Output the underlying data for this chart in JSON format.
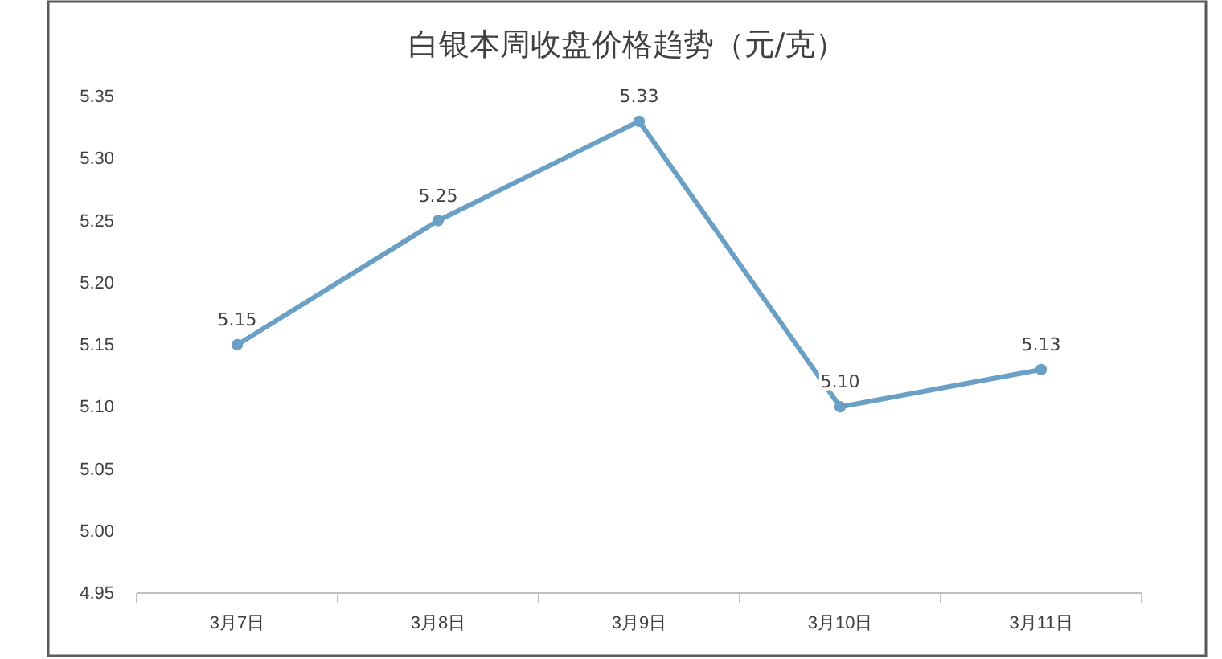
{
  "chart_data": {
    "type": "line",
    "title": "白银本周收盘价格趋势（元/克）",
    "categories": [
      "3月7日",
      "3月8日",
      "3月9日",
      "3月10日",
      "3月11日"
    ],
    "series": [
      {
        "color": "#6a9fc6",
        "values": [
          5.15,
          5.25,
          5.33,
          5.1,
          5.13
        ],
        "value_labels": [
          "5.15",
          "5.25",
          "5.33",
          "5.10",
          "5.13"
        ]
      }
    ],
    "ylim": [
      4.95,
      5.35
    ],
    "yticks": [
      {
        "value": 4.95,
        "label": "4.95"
      },
      {
        "value": 5.0,
        "label": "5.00"
      },
      {
        "value": 5.05,
        "label": "5.05"
      },
      {
        "value": 5.1,
        "label": "5.10"
      },
      {
        "value": 5.15,
        "label": "5.15"
      },
      {
        "value": 5.2,
        "label": "5.20"
      },
      {
        "value": 5.25,
        "label": "5.25"
      },
      {
        "value": 5.3,
        "label": "5.30"
      },
      {
        "value": 5.35,
        "label": "5.35"
      }
    ],
    "grid": false,
    "marker": "circle",
    "line_style": "solid"
  }
}
